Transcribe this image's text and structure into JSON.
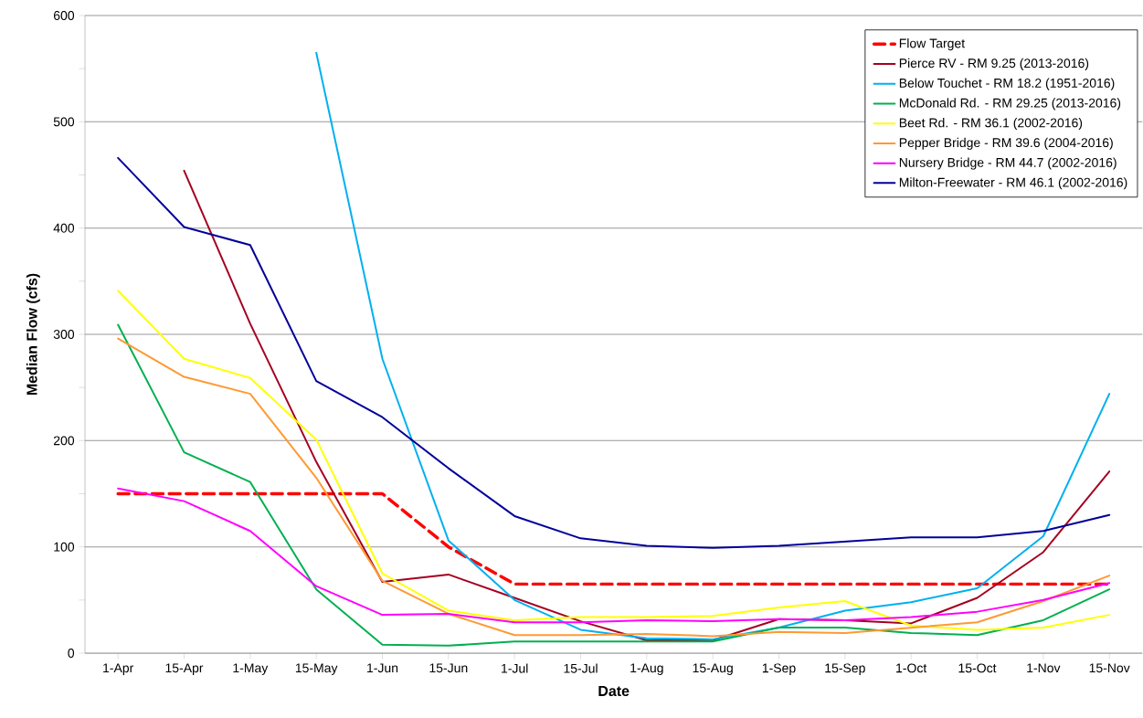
{
  "chart_data": {
    "type": "line",
    "xlabel": "Date",
    "ylabel": "Median Flow (cfs)",
    "categories": [
      "1-Apr",
      "15-Apr",
      "1-May",
      "15-May",
      "1-Jun",
      "15-Jun",
      "1-Jul",
      "15-Jul",
      "1-Aug",
      "15-Aug",
      "1-Sep",
      "15-Sep",
      "1-Oct",
      "15-Oct",
      "1-Nov",
      "15-Nov"
    ],
    "ylim": [
      0,
      600
    ],
    "yticks": [
      0,
      {
        "value": 50,
        "label": null
      },
      100,
      {
        "value": 150,
        "label": null
      },
      200,
      {
        "value": 250,
        "label": null
      },
      300,
      {
        "value": 350,
        "label": null
      },
      400,
      {
        "value": 450,
        "label": null
      },
      500,
      {
        "value": 550,
        "label": null
      },
      600
    ],
    "grid": "y",
    "legend": "top right",
    "series": [
      {
        "name": "Flow Target",
        "color": "#ff0000",
        "line_style": "dashed",
        "values": [
          150,
          150,
          150,
          150,
          150,
          100,
          65,
          65,
          65,
          65,
          65,
          65,
          65,
          65,
          65,
          65
        ]
      },
      {
        "name": "Pierce RV - RM 9.25 (2013-2016)",
        "color": "#a50021",
        "values": [
          null,
          454,
          310,
          180,
          67,
          74,
          52,
          30,
          12,
          12,
          32,
          31,
          28,
          52,
          95,
          171
        ]
      },
      {
        "name": "Below Touchet - RM 18.2 (1951-2016)",
        "color": "#00b0f0",
        "values": [
          null,
          null,
          null,
          565,
          277,
          106,
          50,
          22,
          14,
          13,
          24,
          40,
          48,
          61,
          110,
          244
        ]
      },
      {
        "name": "McDonald Rd. - RM 29.25 (2013-2016)",
        "color": "#00b050",
        "values": [
          309,
          189,
          161,
          60,
          8,
          7,
          11,
          11,
          11,
          11,
          24,
          24,
          19,
          17,
          31,
          60
        ]
      },
      {
        "name": "Beet Rd. - RM 36.1 (2002-2016)",
        "color": "#ffff00",
        "values": [
          341,
          277,
          259,
          201,
          75,
          40,
          31,
          34,
          34,
          35,
          43,
          49,
          26,
          22,
          24,
          36
        ]
      },
      {
        "name": "Pepper Bridge - RM 39.6 (2004-2016)",
        "color": "#ff9933",
        "values": [
          296,
          260,
          244,
          165,
          68,
          37,
          17,
          17,
          18,
          16,
          20,
          19,
          24,
          29,
          49,
          73
        ]
      },
      {
        "name": "Nursery Bridge - RM 44.7 (2002-2016)",
        "color": "#ff00ff",
        "values": [
          155,
          143,
          115,
          63,
          36,
          37,
          29,
          29,
          31,
          30,
          32,
          31,
          34,
          39,
          50,
          66
        ]
      },
      {
        "name": "Milton-Freewater - RM 46.1 (2002-2016)",
        "color": "#000099",
        "values": [
          466,
          401,
          384,
          256,
          222,
          174,
          129,
          108,
          101,
          99,
          101,
          105,
          109,
          109,
          115,
          130
        ]
      }
    ]
  }
}
